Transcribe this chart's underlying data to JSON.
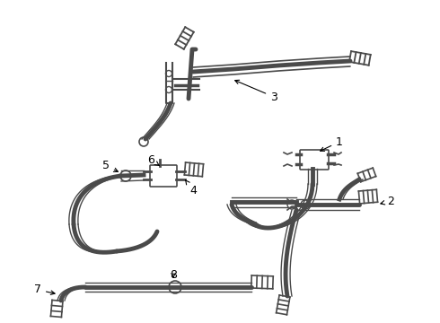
{
  "background_color": "#ffffff",
  "line_color": "#4a4a4a",
  "label_color": "#000000",
  "figure_width": 4.9,
  "figure_height": 3.6,
  "dpi": 100
}
